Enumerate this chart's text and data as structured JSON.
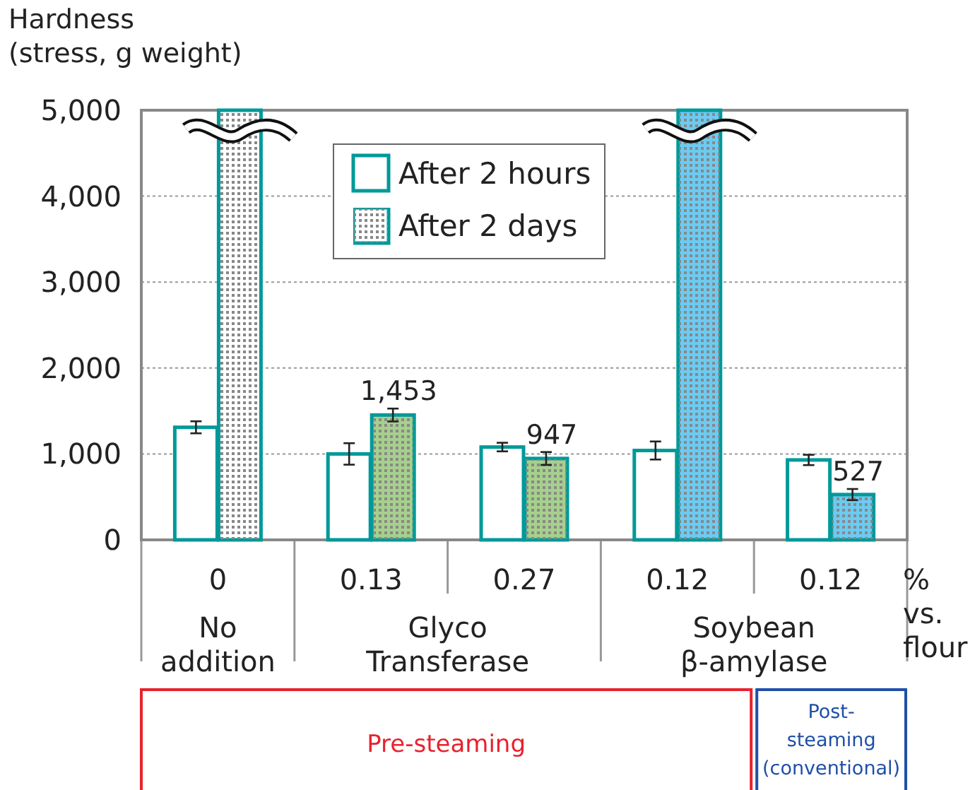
{
  "chart_data": {
    "type": "bar",
    "ylabel": "Hardness (stress, g weight)",
    "xlabel": "% vs. flour",
    "categories": [
      "0",
      "0.13",
      "0.27",
      "0.12",
      "0.12"
    ],
    "series": [
      {
        "name": "After 2 hours",
        "color": "#ffffff",
        "values": [
          1310,
          1000,
          1080,
          1040,
          930
        ],
        "errors": [
          70,
          125,
          50,
          105,
          60
        ]
      },
      {
        "name": "After 2 days",
        "color": "#ffffff",
        "colors": [
          "#ffffff",
          "#a6d08c",
          "#a6d08c",
          "#6ccbf2",
          "#6ccbf2"
        ],
        "values": [
          5000,
          1453,
          947,
          5000,
          527
        ],
        "errors": [
          null,
          75,
          75,
          null,
          65
        ],
        "value_labels": [
          null,
          "1,453",
          "947",
          null,
          "527"
        ]
      }
    ],
    "ylim": [
      0,
      5000
    ],
    "yticks": [
      0,
      {
        "value": 1000,
        "label": "1,000"
      },
      {
        "value": 2000,
        "label": "2,000"
      },
      {
        "value": 3000,
        "label": "3,000"
      },
      {
        "value": 4000,
        "label": "4,000"
      },
      {
        "value": 5000,
        "label": "5,000"
      }
    ],
    "grid": "y",
    "legend": "top",
    "annotations": [
      "No addition",
      "Glyco Transferase",
      "Soybean β-amylase",
      "Pre-steaming",
      "Post-steaming (conventional)"
    ]
  }
}
